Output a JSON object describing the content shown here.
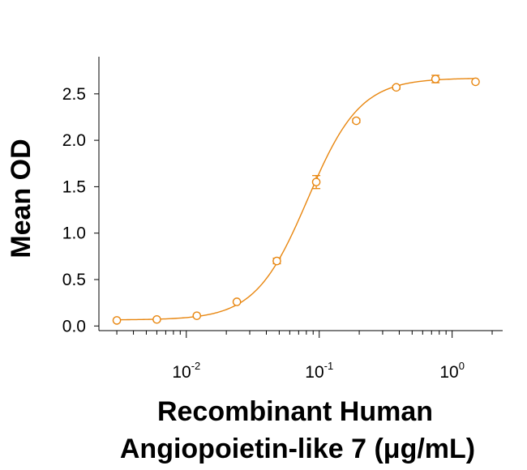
{
  "chart_data": {
    "type": "scatter",
    "xscale": "log",
    "xlim": [
      0.0022,
      2.4
    ],
    "ylim": [
      -0.05,
      2.9
    ],
    "ylabel": "Mean OD",
    "xlabel_line1": "Recombinant Human",
    "xlabel_line2": "Angiopoietin-like 7 (μg/mL)",
    "yticks": [
      0.0,
      0.5,
      1.0,
      1.5,
      2.0,
      2.5
    ],
    "ytick_labels": [
      "0.0",
      "0.5",
      "1.0",
      "1.5",
      "2.0",
      "2.5"
    ],
    "xticks_major": [
      {
        "value": 0.01,
        "base": "10",
        "exp": "-2"
      },
      {
        "value": 0.1,
        "base": "10",
        "exp": "-1"
      },
      {
        "value": 1,
        "base": "10",
        "exp": "0"
      }
    ],
    "series": [
      {
        "name": "Recombinant Human Angiopoietin-like 7",
        "color": "#E8860F",
        "x": [
          0.003,
          0.006,
          0.012,
          0.024,
          0.048,
          0.095,
          0.19,
          0.38,
          0.75,
          1.5
        ],
        "y": [
          0.06,
          0.07,
          0.11,
          0.26,
          0.7,
          1.55,
          2.21,
          2.57,
          2.66,
          2.63
        ],
        "err": [
          0.0,
          0.0,
          0.0,
          0.0,
          0.03,
          0.07,
          0.02,
          0.02,
          0.04,
          0.0
        ],
        "fit": {
          "bottom": 0.065,
          "top": 2.67,
          "ec50": 0.082,
          "hill": 2.2
        }
      }
    ]
  }
}
